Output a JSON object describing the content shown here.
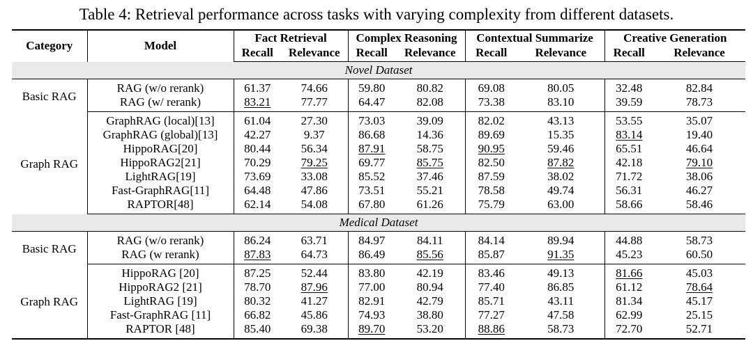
{
  "caption": "Table 4: Retrieval performance across tasks with varying complexity from different datasets.",
  "headers": {
    "category": "Category",
    "model": "Model",
    "tasks": [
      "Fact Retrieval",
      "Complex Reasoning",
      "Contextual Summarize",
      "Creative Generation"
    ],
    "recall": "Recall",
    "relevance": "Relevance"
  },
  "sections": [
    {
      "title": "Novel Dataset",
      "groups": [
        {
          "category": "Basic RAG",
          "rows": [
            {
              "model": "RAG (w/o rerank)",
              "values": [
                "61.37",
                "74.66",
                "59.80",
                "80.82",
                "69.08",
                "80.05",
                "32.48",
                "82.84"
              ],
              "underline": []
            },
            {
              "model": "RAG (w/ rerank)",
              "values": [
                "83.21",
                "77.77",
                "64.47",
                "82.08",
                "73.38",
                "83.10",
                "39.59",
                "78.73"
              ],
              "underline": [
                0
              ]
            }
          ]
        },
        {
          "category": "Graph RAG",
          "rows": [
            {
              "model": "GraphRAG (local)[13]",
              "values": [
                "61.04",
                "27.30",
                "73.03",
                "39.09",
                "82.02",
                "43.13",
                "53.55",
                "35.07"
              ],
              "underline": []
            },
            {
              "model": "GraphRAG (global)[13]",
              "values": [
                "42.27",
                "9.37",
                "86.68",
                "14.36",
                "89.69",
                "15.35",
                "83.14",
                "19.40"
              ],
              "underline": [
                6
              ]
            },
            {
              "model": "HippoRAG[20]",
              "values": [
                "80.44",
                "56.34",
                "87.91",
                "58.75",
                "90.95",
                "59.46",
                "65.51",
                "46.64"
              ],
              "underline": [
                2,
                4
              ]
            },
            {
              "model": "HippoRAG2[21]",
              "values": [
                "70.29",
                "79.25",
                "69.77",
                "85.75",
                "82.50",
                "87.82",
                "42.18",
                "79.10"
              ],
              "underline": [
                1,
                3,
                5,
                7
              ]
            },
            {
              "model": "LightRAG[19]",
              "values": [
                "73.69",
                "33.08",
                "85.52",
                "37.46",
                "87.59",
                "38.02",
                "71.72",
                "38.06"
              ],
              "underline": []
            },
            {
              "model": "Fast-GraphRAG[11]",
              "values": [
                "64.48",
                "47.86",
                "73.51",
                "55.21",
                "78.58",
                "49.74",
                "56.31",
                "46.27"
              ],
              "underline": []
            },
            {
              "model": "RAPTOR[48]",
              "values": [
                "62.14",
                "54.08",
                "67.80",
                "61.26",
                "75.79",
                "63.00",
                "58.66",
                "58.46"
              ],
              "underline": []
            }
          ]
        }
      ]
    },
    {
      "title": "Medical Dataset",
      "groups": [
        {
          "category": "Basic RAG",
          "rows": [
            {
              "model": "RAG (w/o rerank)",
              "values": [
                "86.24",
                "63.71",
                "84.97",
                "84.11",
                "84.14",
                "89.94",
                "44.88",
                "58.73"
              ],
              "underline": []
            },
            {
              "model": "RAG (w rerank)",
              "values": [
                "87.83",
                "64.73",
                "86.49",
                "85.56",
                "85.87",
                "91.35",
                "45.23",
                "60.50"
              ],
              "underline": [
                0,
                3,
                5
              ]
            }
          ]
        },
        {
          "category": "Graph RAG",
          "rows": [
            {
              "model": "HippoRAG [20]",
              "values": [
                "87.25",
                "52.44",
                "83.80",
                "42.19",
                "83.46",
                "49.13",
                "81.66",
                "45.03"
              ],
              "underline": [
                6
              ]
            },
            {
              "model": "HippoRAG2 [21]",
              "values": [
                "78.70",
                "87.96",
                "77.00",
                "80.94",
                "77.40",
                "86.85",
                "61.12",
                "78.64"
              ],
              "underline": [
                1,
                7
              ]
            },
            {
              "model": "LightRAG [19]",
              "values": [
                "80.32",
                "41.27",
                "82.91",
                "42.79",
                "85.71",
                "43.11",
                "81.34",
                "45.17"
              ],
              "underline": []
            },
            {
              "model": "Fast-GraphRAG [11]",
              "values": [
                "66.82",
                "45.86",
                "74.93",
                "38.80",
                "77.27",
                "47.58",
                "62.99",
                "25.15"
              ],
              "underline": []
            },
            {
              "model": "RAPTOR [48]",
              "values": [
                "85.40",
                "69.38",
                "89.70",
                "53.20",
                "88.86",
                "58.73",
                "72.70",
                "52.71"
              ],
              "underline": [
                2,
                4
              ]
            }
          ]
        }
      ]
    }
  ]
}
